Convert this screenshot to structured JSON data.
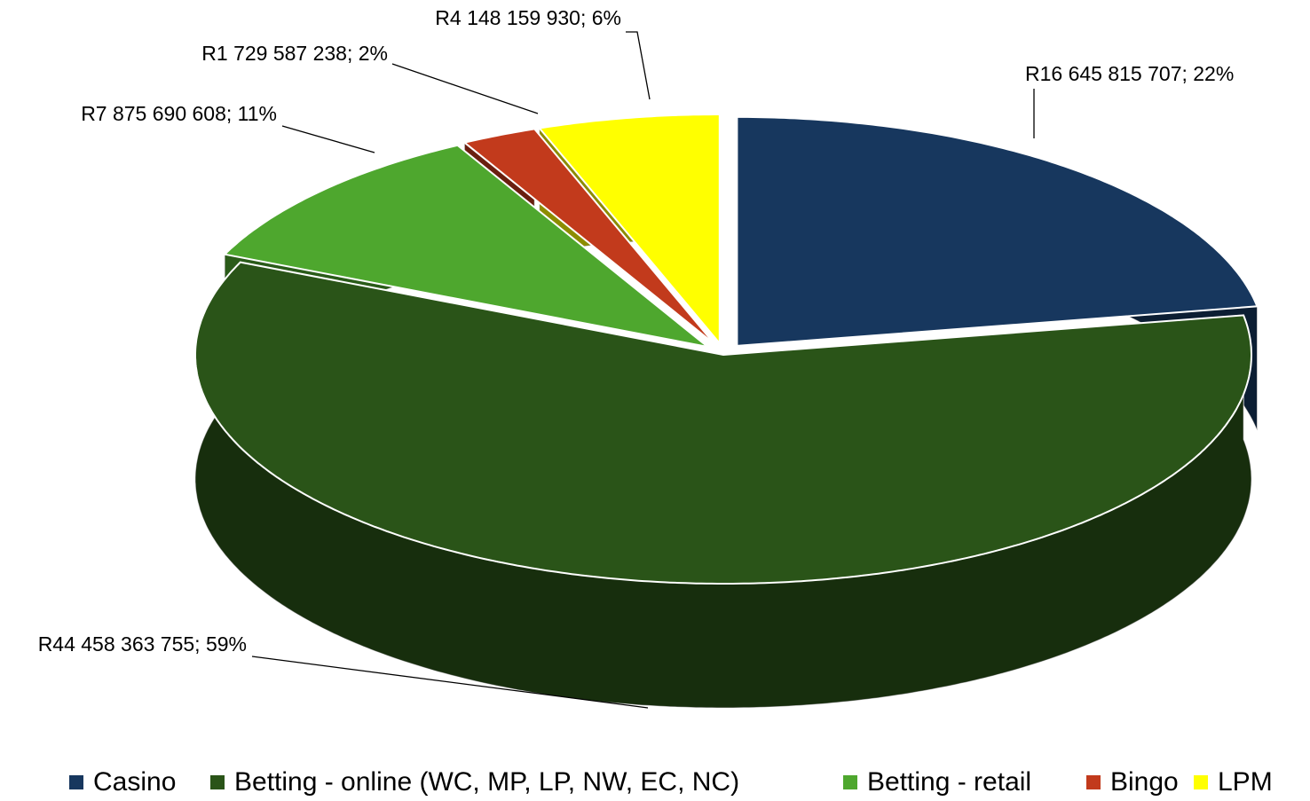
{
  "chart_data": {
    "type": "pie",
    "categories": [
      "Casino",
      "Betting - online (WC, MP, LP, NW, EC, NC)",
      "Betting - retail",
      "Bingo",
      "LPM"
    ],
    "values": [
      16645815707,
      44458363755,
      7875690608,
      1729587238,
      4148159930
    ],
    "value_labels": [
      "R16 645 815 707; 22%",
      "R44 458 363 755; 59%",
      "R7 875 690 608; 11%",
      "R1 729 587 238; 2%",
      "R4 148 159 930; 6%"
    ],
    "colors": [
      "#17375e",
      "#2a5418",
      "#4ea72e",
      "#c23a1c",
      "#ffff00"
    ],
    "legend": "bottom"
  }
}
